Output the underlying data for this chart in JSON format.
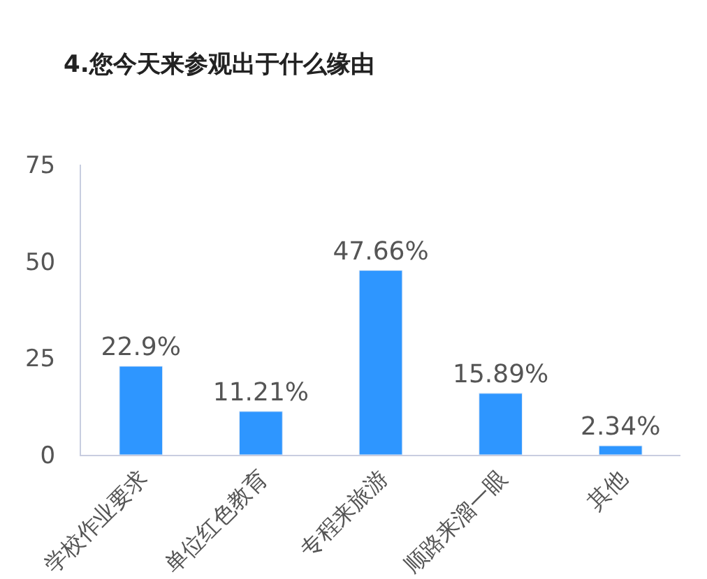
{
  "chart_data": {
    "type": "bar",
    "title": "4.您今天来参观出于什么缘由",
    "categories": [
      "学校作业要求",
      "单位红色教育",
      "专程来旅游",
      "顺路来溜一眼",
      "其他"
    ],
    "values": [
      22.9,
      11.21,
      47.66,
      15.89,
      2.34
    ],
    "value_labels": [
      "22.9%",
      "11.21%",
      "47.66%",
      "15.89%",
      "2.34%"
    ],
    "color": "#2e96ff",
    "ylim": [
      0,
      75
    ],
    "yticks": [
      0,
      25,
      50,
      75
    ]
  }
}
